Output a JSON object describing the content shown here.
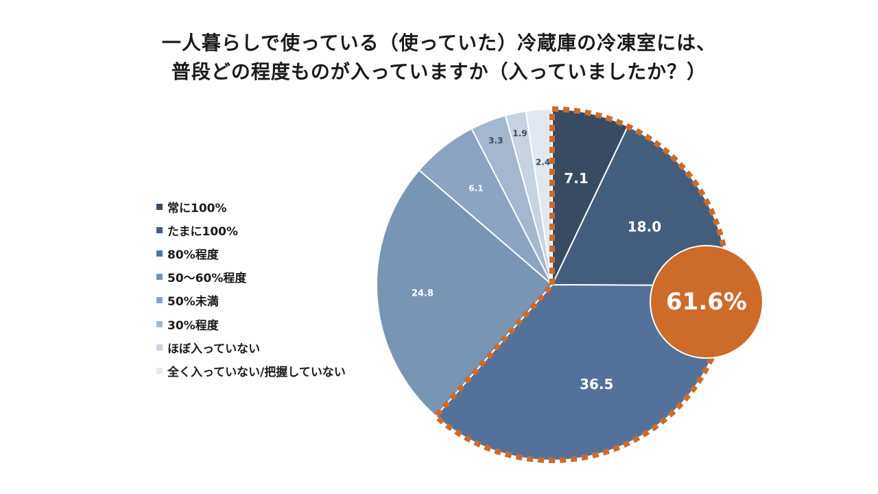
{
  "title": {
    "line1": "一人暮らしで使っている（使っていた）冷蔵庫の冷凍室には、",
    "line2": "普段どの程度ものが入っていますか（入っていましたか？）"
  },
  "callout": {
    "label": "61.6%",
    "color": "#cd6b2b"
  },
  "chart_data": {
    "type": "pie",
    "title": "一人暮らしで使っている（使っていた）冷蔵庫の冷凍室には、普段どの程度ものが入っていますか（入っていましたか？）",
    "categories": [
      "常に100%",
      "たまに100%",
      "80%程度",
      "50～60%程度",
      "50%未満",
      "30%程度",
      "ほぼ入っていない",
      "全く入っていない/把握していない"
    ],
    "values": [
      7.1,
      18.0,
      36.5,
      24.8,
      6.1,
      3.3,
      1.9,
      2.4
    ],
    "value_labels": [
      "7.1",
      "18.0",
      "36.5",
      "24.8",
      "6.1",
      "3.3",
      "1.9",
      "2.4"
    ],
    "colors": [
      "#374b63",
      "#435e7d",
      "#53719a",
      "#7895b4",
      "#8aa4c1",
      "#a3b7cf",
      "#c6d3e2",
      "#e2e8f0"
    ],
    "highlighted_slices": [
      0,
      1,
      2
    ],
    "highlight_total": "61.6%",
    "legend_position": "left"
  }
}
